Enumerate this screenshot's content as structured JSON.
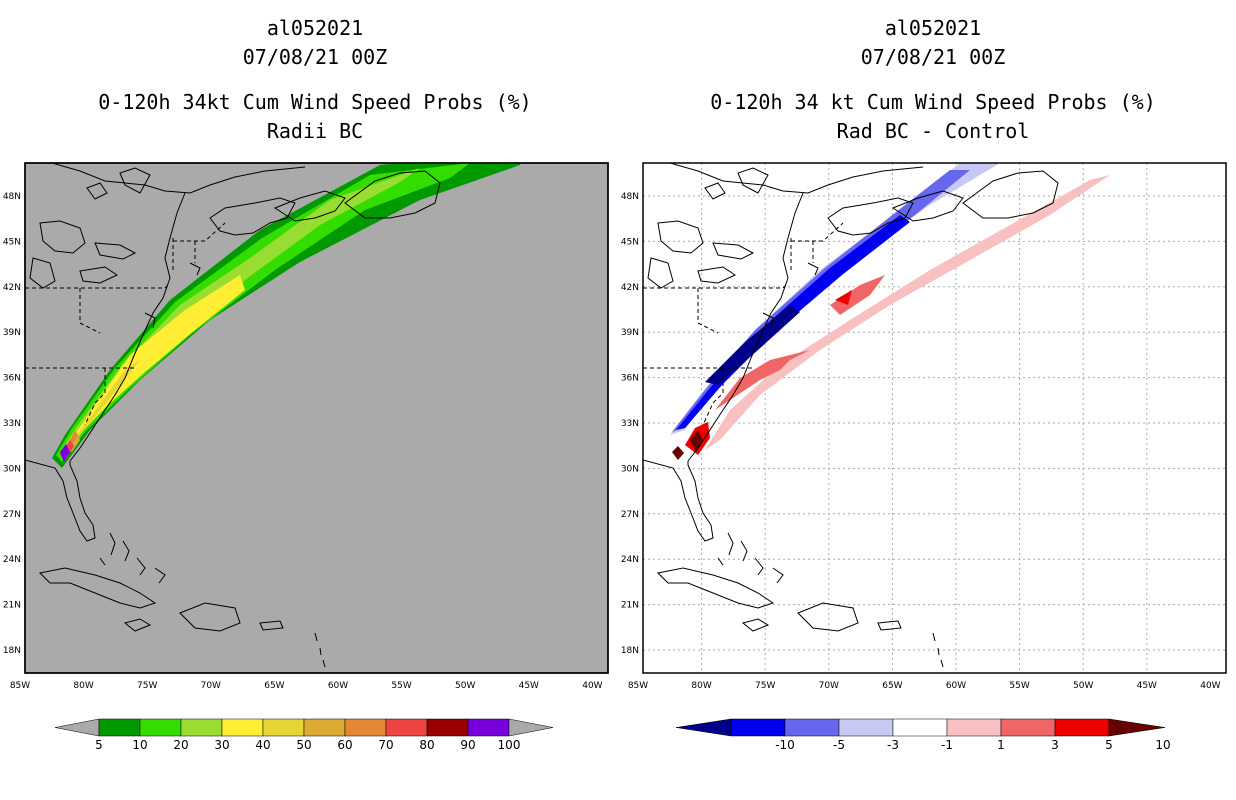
{
  "left_panel": {
    "storm_id": "al052021",
    "datetime": "07/08/21 00Z",
    "product": "0-120h 34kt Cum Wind Speed Probs (%)",
    "subtitle": "Radii BC",
    "lat_labels": [
      "48N",
      "45N",
      "42N",
      "39N",
      "36N",
      "33N",
      "30N",
      "27N",
      "24N",
      "21N",
      "18N"
    ],
    "lon_labels": [
      "85W",
      "80W",
      "75W",
      "70W",
      "65W",
      "60W",
      "55W",
      "50W",
      "45W",
      "40W"
    ],
    "legend": {
      "labels": [
        "5",
        "10",
        "20",
        "30",
        "40",
        "50",
        "60",
        "70",
        "80",
        "90",
        "100"
      ],
      "colors": [
        "#009900",
        "#33dd00",
        "#99dd33",
        "#ffee33",
        "#e6d633",
        "#ddaa33",
        "#e68833",
        "#ee4444",
        "#990000",
        "#7700dd"
      ],
      "arrow_color": "#aaaaaa"
    },
    "colors": {
      "background": "#aaaaaa",
      "coast": "#000000"
    }
  },
  "right_panel": {
    "storm_id": "al052021",
    "datetime": "07/08/21 00Z",
    "product": "0-120h 34 kt Cum Wind Speed Probs (%)",
    "subtitle": "Rad BC - Control",
    "lat_labels": [
      "48N",
      "45N",
      "42N",
      "39N",
      "36N",
      "33N",
      "30N",
      "27N",
      "24N",
      "21N",
      "18N"
    ],
    "lon_labels": [
      "85W",
      "80W",
      "75W",
      "70W",
      "65W",
      "60W",
      "55W",
      "50W",
      "45W",
      "40W"
    ],
    "legend": {
      "labels": [
        "-10",
        "-5",
        "-3",
        "-1",
        "1",
        "3",
        "5",
        "10"
      ],
      "colors": [
        "#0000ee",
        "#6666ee",
        "#c8c8f5",
        "#ffffff",
        "#f8c0c0",
        "#f06666",
        "#ee0000"
      ],
      "left_arrow_color": "#000088",
      "right_arrow_color": "#660000"
    },
    "colors": {
      "background": "#ffffff",
      "grid": "#aaaaaa",
      "coast": "#000000"
    }
  }
}
